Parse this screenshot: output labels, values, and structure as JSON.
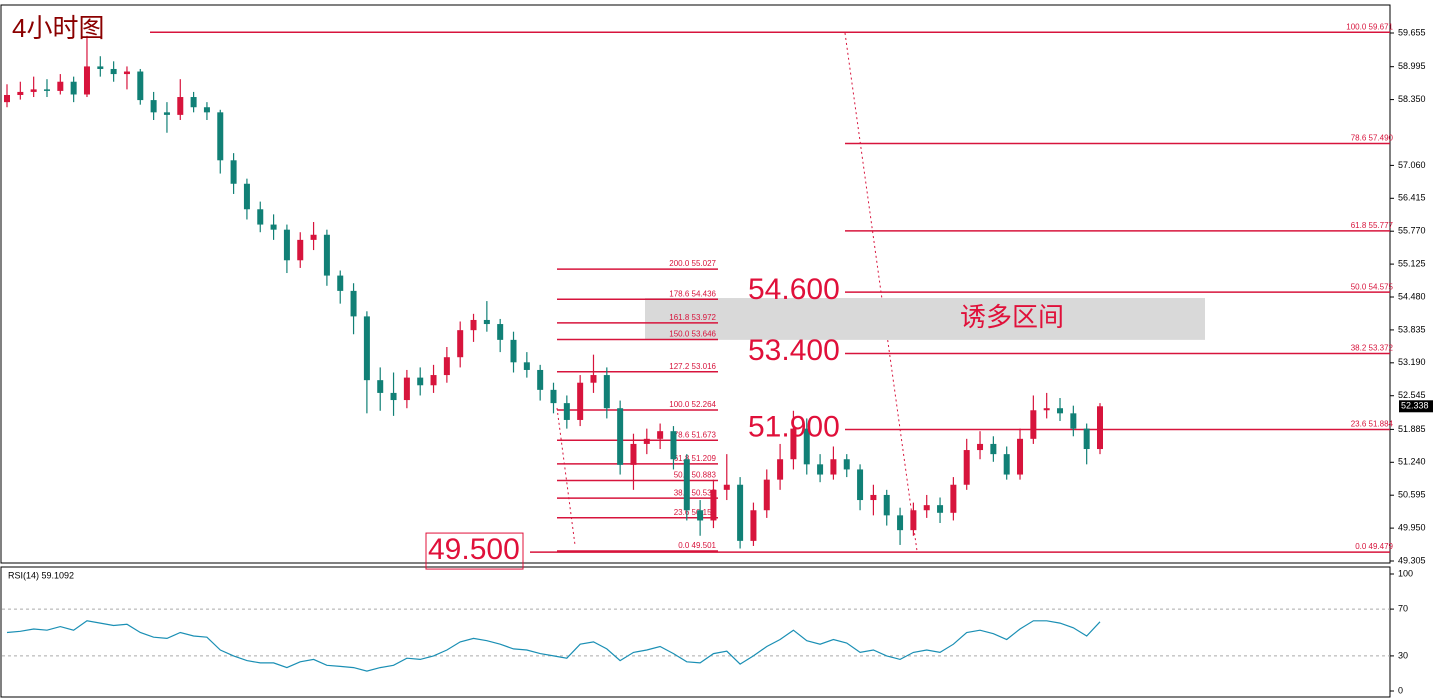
{
  "chart_data": [
    {
      "type": "candlestick",
      "title": "4小时图",
      "ylim": [
        49.266,
        60.204
      ],
      "yticks": [
        59.655,
        58.995,
        {
          "value": 58.35,
          "label": "58.350"
        },
        {
          "value": 57.06,
          "label": "57.060"
        },
        56.415,
        {
          "value": 55.77,
          "label": "55.770"
        },
        55.125,
        {
          "value": 54.48,
          "label": "54.480"
        },
        53.835,
        {
          "value": 53.19,
          "label": "53.190"
        },
        52.545,
        51.885,
        {
          "value": 51.24,
          "label": "51.240"
        },
        50.595,
        {
          "value": 49.95,
          "label": "49.950"
        },
        49.305
      ],
      "up_color": "#d7143c",
      "down_color": "#118076",
      "candles": [
        [
          58.3,
          58.65,
          58.2,
          58.44
        ],
        [
          58.44,
          58.7,
          58.35,
          58.5
        ],
        [
          58.5,
          58.8,
          58.4,
          58.55
        ],
        [
          58.55,
          58.75,
          58.4,
          58.52
        ],
        [
          58.52,
          58.85,
          58.45,
          58.7
        ],
        [
          58.7,
          58.8,
          58.3,
          58.45
        ],
        [
          58.45,
          59.6,
          58.4,
          59.0
        ],
        [
          59.0,
          59.2,
          58.8,
          58.95
        ],
        [
          58.95,
          59.1,
          58.7,
          58.85
        ],
        [
          58.85,
          59.0,
          58.55,
          58.9
        ],
        [
          58.9,
          58.95,
          58.25,
          58.34
        ],
        [
          58.34,
          58.5,
          57.95,
          58.1
        ],
        [
          58.1,
          58.3,
          57.7,
          58.05
        ],
        [
          58.05,
          58.75,
          57.95,
          58.4
        ],
        [
          58.4,
          58.5,
          58.1,
          58.2
        ],
        [
          58.2,
          58.3,
          57.95,
          58.1
        ],
        [
          58.1,
          58.15,
          56.9,
          57.16
        ],
        [
          57.16,
          57.3,
          56.5,
          56.7
        ],
        [
          56.7,
          56.8,
          56.0,
          56.2
        ],
        [
          56.2,
          56.35,
          55.75,
          55.9
        ],
        [
          55.9,
          56.1,
          55.6,
          55.8
        ],
        [
          55.8,
          55.9,
          54.95,
          55.2
        ],
        [
          55.2,
          55.75,
          55.05,
          55.6
        ],
        [
          55.6,
          55.95,
          55.4,
          55.7
        ],
        [
          55.7,
          55.8,
          54.7,
          54.9
        ],
        [
          54.9,
          55.0,
          54.35,
          54.6
        ],
        [
          54.6,
          54.75,
          53.75,
          54.1
        ],
        [
          54.1,
          54.2,
          52.2,
          52.85
        ],
        [
          52.85,
          53.1,
          52.25,
          52.6
        ],
        [
          52.6,
          53.0,
          52.15,
          52.46
        ],
        [
          52.46,
          53.05,
          52.3,
          52.9
        ],
        [
          52.9,
          53.1,
          52.55,
          52.75
        ],
        [
          52.75,
          53.15,
          52.6,
          52.95
        ],
        [
          52.95,
          53.5,
          52.8,
          53.3
        ],
        [
          53.3,
          54.0,
          53.1,
          53.83
        ],
        [
          53.83,
          54.15,
          53.6,
          54.03
        ],
        [
          54.03,
          54.4,
          53.8,
          53.95
        ],
        [
          53.95,
          54.05,
          53.4,
          53.64
        ],
        [
          53.64,
          53.8,
          53.0,
          53.2
        ],
        [
          53.2,
          53.4,
          52.9,
          53.05
        ],
        [
          53.05,
          53.15,
          52.45,
          52.66
        ],
        [
          52.66,
          52.8,
          52.2,
          52.4
        ],
        [
          52.4,
          52.55,
          51.9,
          52.07
        ],
        [
          52.07,
          52.95,
          51.95,
          52.8
        ],
        [
          52.8,
          53.35,
          52.6,
          52.95
        ],
        [
          52.95,
          53.1,
          52.1,
          52.3
        ],
        [
          52.3,
          52.45,
          51.0,
          51.19
        ],
        [
          51.19,
          51.8,
          50.7,
          51.6
        ],
        [
          51.6,
          51.9,
          51.4,
          51.7
        ],
        [
          51.7,
          52.0,
          51.5,
          51.85
        ],
        [
          51.85,
          51.95,
          51.1,
          51.3
        ],
        [
          51.3,
          51.4,
          50.1,
          50.3
        ],
        [
          50.3,
          50.5,
          49.8,
          50.1
        ],
        [
          50.1,
          50.9,
          49.95,
          50.7
        ],
        [
          50.7,
          51.4,
          50.5,
          50.8
        ],
        [
          50.8,
          50.95,
          49.55,
          49.7
        ],
        [
          49.7,
          50.45,
          49.6,
          50.3
        ],
        [
          50.3,
          51.1,
          50.15,
          50.9
        ],
        [
          50.9,
          51.6,
          50.7,
          51.3
        ],
        [
          51.3,
          52.25,
          51.1,
          51.9
        ],
        [
          51.9,
          52.1,
          51.0,
          51.2
        ],
        [
          51.2,
          51.4,
          50.85,
          51.0
        ],
        [
          51.0,
          51.55,
          50.9,
          51.3
        ],
        [
          51.3,
          51.4,
          50.95,
          51.1
        ],
        [
          51.1,
          51.2,
          50.3,
          50.5
        ],
        [
          50.5,
          50.8,
          50.2,
          50.6
        ],
        [
          50.6,
          50.7,
          50.0,
          50.2
        ],
        [
          50.2,
          50.35,
          49.62,
          49.91
        ],
        [
          49.91,
          50.45,
          49.8,
          50.3
        ],
        [
          50.3,
          50.6,
          50.15,
          50.4
        ],
        [
          50.4,
          50.55,
          50.05,
          50.25
        ],
        [
          50.25,
          50.95,
          50.1,
          50.8
        ],
        [
          50.8,
          51.7,
          50.7,
          51.48
        ],
        [
          51.48,
          51.85,
          51.3,
          51.6
        ],
        [
          51.6,
          51.75,
          51.25,
          51.4
        ],
        [
          51.4,
          51.55,
          50.9,
          51.0
        ],
        [
          51.0,
          51.9,
          50.9,
          51.7
        ],
        [
          51.7,
          52.55,
          51.6,
          52.26
        ],
        [
          52.26,
          52.6,
          52.1,
          52.3
        ],
        [
          52.3,
          52.5,
          52.05,
          52.2
        ],
        [
          52.2,
          52.35,
          51.75,
          51.9
        ],
        [
          51.9,
          52.0,
          51.2,
          51.5
        ],
        [
          51.5,
          52.4,
          51.4,
          52.338
        ]
      ],
      "current_price": 52.338,
      "fib_right": [
        {
          "value": 59.671,
          "label": "100.0  59.671"
        },
        {
          "value": 57.49,
          "label": "78.6  57.490"
        },
        {
          "value": 55.777,
          "label": "61.8  55.777"
        },
        {
          "value": 54.575,
          "label": "50.0  54.575"
        },
        {
          "value": 53.372,
          "label": "38.2  53.372"
        },
        {
          "value": 51.884,
          "label": "23.6  51.884"
        },
        {
          "value": 49.479,
          "label": "0.0  49.479"
        }
      ],
      "fib_left": [
        {
          "value": 55.027,
          "label": "200.0  55.027"
        },
        {
          "value": 54.436,
          "label": "178.6  54.436"
        },
        {
          "value": 53.972,
          "label": "161.8  53.972"
        },
        {
          "value": 53.646,
          "label": "150.0  53.646"
        },
        {
          "value": 53.016,
          "label": "127.2  53.016"
        },
        {
          "value": 52.264,
          "label": "100.0  52.264"
        },
        {
          "value": 51.673,
          "label": "78.6  51.673"
        },
        {
          "value": 51.209,
          "label": "61.8  51.209"
        },
        {
          "value": 50.883,
          "label": "50.0  50.883"
        },
        {
          "value": 50.537,
          "label": "38.2  50.537"
        },
        {
          "value": 50.153,
          "label": "23.6  50.153"
        },
        {
          "value": 49.501,
          "label": "0.0  49.501"
        }
      ],
      "annotations": [
        {
          "value": 54.6,
          "label": "54.600"
        },
        {
          "value": 53.4,
          "label": "53.400"
        },
        {
          "value": 51.9,
          "label": "51.900"
        },
        {
          "value": 49.5,
          "label": "49.500"
        }
      ],
      "zone": {
        "label": "诱多区间",
        "range": [
          53.64,
          54.46
        ]
      }
    },
    {
      "type": "line",
      "title": "RSI(14) 59.1092",
      "ylim": [
        0,
        100
      ],
      "yticks": [
        100,
        70,
        30,
        0
      ],
      "color": "#1a8fb4",
      "values": [
        50,
        51,
        53,
        52,
        55,
        52,
        60,
        58,
        56,
        57,
        50,
        46,
        45,
        50,
        47,
        46,
        35,
        30,
        26,
        24,
        24,
        20,
        25,
        27,
        22,
        21,
        20,
        17,
        20,
        22,
        28,
        27,
        30,
        35,
        42,
        45,
        43,
        40,
        36,
        35,
        32,
        30,
        28,
        40,
        42,
        36,
        26,
        33,
        35,
        38,
        32,
        25,
        24,
        32,
        34,
        23,
        30,
        38,
        44,
        52,
        43,
        40,
        44,
        41,
        33,
        35,
        30,
        27,
        33,
        35,
        33,
        40,
        50,
        52,
        49,
        44,
        53,
        60,
        60,
        58,
        54,
        47,
        59.1092
      ]
    }
  ]
}
